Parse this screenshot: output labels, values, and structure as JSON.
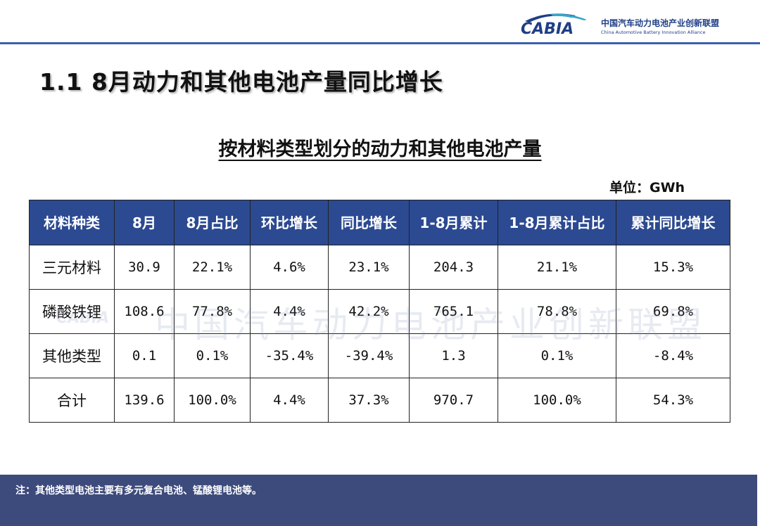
{
  "header": {
    "logo_mark": "CABIA",
    "org_name_cn": "中国汽车动力电池产业创新联盟",
    "org_name_en": "China Automotive Battery Innovation Alliance"
  },
  "slide_title": "1.1  8月动力和其他电池产量同比增长",
  "table_title": "按材料类型划分的动力和其他电池产量",
  "unit": "单位：GWh",
  "table": {
    "headers": [
      "材料种类",
      "8月",
      "8月占比",
      "环比增长",
      "同比增长",
      "1-8月累计",
      "1-8月累计占比",
      "累计同比增长"
    ],
    "rows": [
      [
        "三元材料",
        "30.9",
        "22.1%",
        "4.6%",
        "23.1%",
        "204.3",
        "21.1%",
        "15.3%"
      ],
      [
        "磷酸铁锂",
        "108.6",
        "77.8%",
        "4.4%",
        "42.2%",
        "765.1",
        "78.8%",
        "69.8%"
      ],
      [
        "其他类型",
        "0.1",
        "0.1%",
        "-35.4%",
        "-39.4%",
        "1.3",
        "0.1%",
        "-8.4%"
      ],
      [
        "合计",
        "139.6",
        "100.0%",
        "4.4%",
        "37.3%",
        "970.7",
        "100.0%",
        "54.3%"
      ]
    ]
  },
  "watermark": {
    "logo": "CABIA",
    "text": "中国汽车动力电池产业创新联盟"
  },
  "footer": {
    "note": "注：其他类型电池主要有多元复合电池、锰酸锂电池等。"
  },
  "colors": {
    "header_fill": "#2c4a91",
    "footer_bg": "#3d4a7c",
    "brand_blue": "#1f3f86"
  }
}
